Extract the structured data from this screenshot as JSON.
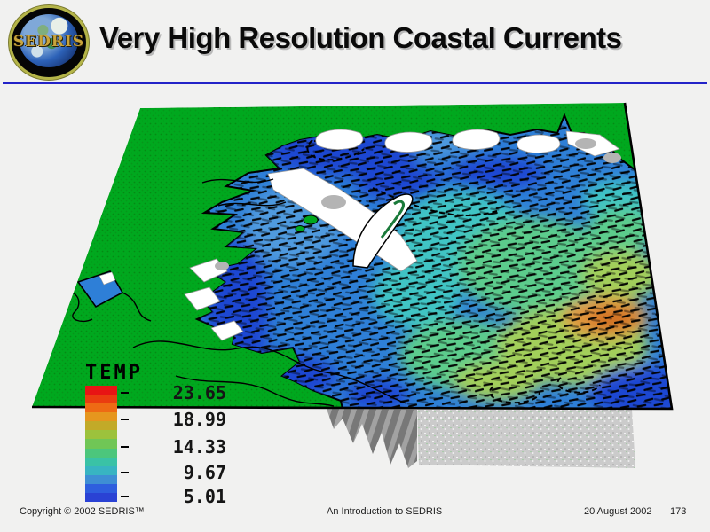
{
  "slide": {
    "background_color": "#f1f1f0",
    "title": "Very High Resolution Coastal Currents",
    "rule_color": "#2323c8"
  },
  "logo": {
    "label": "SEDRIS",
    "ring_color": "#b5b549",
    "text_color": "#c9a43c"
  },
  "map": {
    "land_color": "#00a81e",
    "water_base_color": "#2e7fd7",
    "cold_water_color": "#2244d2",
    "warm_patch_color": "#cf6a1e",
    "current_vector_color": "#000000",
    "snow_color": "#ffffff",
    "shadow_color": "#c9c9c9"
  },
  "legend": {
    "title": "TEMP",
    "ticks": [
      "23.65",
      "18.99",
      "14.33",
      "9.67",
      "5.01"
    ],
    "colors": [
      "#e81414",
      "#ea3c10",
      "#ee6a14",
      "#e6961e",
      "#c2aa28",
      "#9cc23c",
      "#70c656",
      "#4cc67c",
      "#3ac2a6",
      "#38b4c2",
      "#3e8ed4",
      "#2e5ede",
      "#2a42d4"
    ]
  },
  "footer": {
    "copyright": "Copyright © 2002 SEDRIS™",
    "center": "An Introduction to SEDRIS",
    "date": "20 August 2002",
    "page": "173"
  }
}
